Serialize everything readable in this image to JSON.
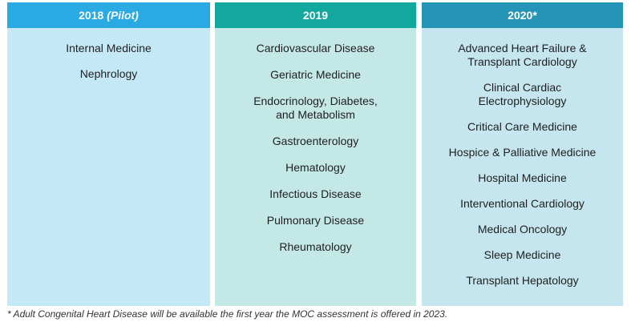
{
  "columns": {
    "y2018": {
      "year": "2018",
      "qualifier": "(Pilot)",
      "items": [
        "Internal Medicine",
        "Nephrology"
      ]
    },
    "y2019": {
      "year": "2019",
      "items": [
        "Cardiovascular Disease",
        "Geriatric Medicine",
        "Endocrinology, Diabetes,",
        "and Metabolism",
        "Gastroenterology",
        "Hematology",
        "Infectious Disease",
        "Pulmonary Disease",
        "Rheumatology"
      ]
    },
    "y2020": {
      "year": "2020*",
      "items": [
        "Advanced Heart Failure &",
        "Transplant Cardiology",
        "Clinical Cardiac",
        "Electrophysiology",
        "Critical Care Medicine",
        "Hospice & Palliative Medicine",
        "Hospital Medicine",
        "Interventional Cardiology",
        "Medical Oncology",
        "Sleep Medicine",
        "Transplant Hepatology"
      ]
    }
  },
  "footnote": "* Adult Congenital Heart Disease will be available the first year the MOC assessment is offered in 2023.",
  "colors": {
    "header_2018": "#29aae2",
    "body_2018": "#c5e8f7",
    "header_2019": "#13a89e",
    "body_2019": "#c4e8e6",
    "header_2020": "#2495b6",
    "body_2020": "#c5e5ef"
  }
}
